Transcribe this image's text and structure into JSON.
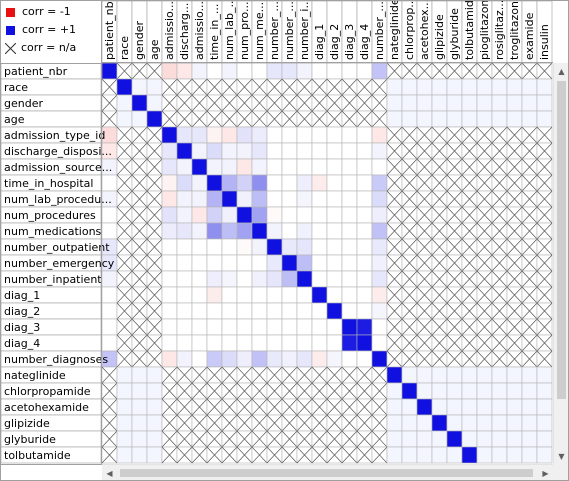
{
  "legend": {
    "neg": {
      "label": "corr = -1",
      "color": "#e81010"
    },
    "pos": {
      "label": "corr = +1",
      "color": "#1010e0"
    },
    "na": {
      "label": "corr = n/a",
      "icon": "cross-icon"
    }
  },
  "columns": [
    "patient_nbr",
    "race",
    "gender",
    "age",
    "admission_type_id",
    "discharge_disposition_id",
    "admission_source_id",
    "time_in_hospital",
    "num_lab_procedures",
    "num_procedures",
    "num_medications",
    "number_outpatient",
    "number_emergency",
    "number_inpatient",
    "diag_1",
    "diag_2",
    "diag_3",
    "diag_4",
    "number_diagnoses",
    "nateglinide",
    "chlorpropamide",
    "acetohexamide",
    "glipizide",
    "glyburide",
    "tolbutamide",
    "pioglitazone",
    "rosiglitazone",
    "troglitazone",
    "examide",
    "insulin"
  ],
  "column_labels": [
    "patient_nbr",
    "race",
    "gender",
    "age",
    "admissio...",
    "discharg...",
    "admissio...",
    "time_in_...",
    "num_lab_...",
    "num_pro...",
    "num_me...",
    "number_...",
    "number_...",
    "number_i...",
    "diag_1",
    "diag_2",
    "diag_3",
    "diag_4",
    "number_...",
    "nateglinide",
    "chlorprop...",
    "acetohex...",
    "glipizide",
    "glyburide",
    "tolbutamide",
    "pioglitazone",
    "rosiglitaz...",
    "troglitazone",
    "examide",
    "insulin"
  ],
  "row_labels": [
    "patient_nbr",
    "race",
    "gender",
    "age",
    "admission_type_id",
    "discharge_disposi...",
    "admission_source...",
    "time_in_hospital",
    "num_lab_procedu...",
    "num_procedures",
    "num_medications",
    "number_outpatient",
    "number_emergency",
    "number_inpatient",
    "diag_1",
    "diag_2",
    "diag_3",
    "diag_4",
    "number_diagnoses",
    "nateglinide",
    "chlorpropamide",
    "acetohexamide",
    "glipizide",
    "glyburide",
    "tolbutamide"
  ],
  "chart_data": {
    "type": "heatmap",
    "title": "",
    "color_scale": {
      "min": -1,
      "max": 1,
      "min_color": "#e81010",
      "max_color": "#1010e0",
      "na": "cross"
    },
    "numeric_features": [
      "patient_nbr",
      "admission_type_id",
      "discharge_disposition_id",
      "admission_source_id",
      "time_in_hospital",
      "num_lab_procedures",
      "num_procedures",
      "num_medications",
      "number_outpatient",
      "number_emergency",
      "number_inpatient",
      "diag_1",
      "diag_2",
      "diag_3",
      "diag_4",
      "number_diagnoses"
    ],
    "categorical_features": [
      "race",
      "gender",
      "age",
      "nateglinide",
      "chlorpropamide",
      "acetohexamide",
      "glipizide",
      "glyburide",
      "tolbutamide",
      "pioglitazone",
      "rosiglitazone",
      "troglitazone",
      "examide",
      "insulin"
    ],
    "diagonal_value": 1,
    "correlations": [
      {
        "a": "patient_nbr",
        "b": "admission_type_id",
        "value": -0.15
      },
      {
        "a": "patient_nbr",
        "b": "discharge_disposition_id",
        "value": -0.1
      },
      {
        "a": "patient_nbr",
        "b": "admission_source_id",
        "value": 0.05
      },
      {
        "a": "patient_nbr",
        "b": "num_lab_procedures",
        "value": 0.05
      },
      {
        "a": "patient_nbr",
        "b": "number_outpatient",
        "value": 0.1
      },
      {
        "a": "patient_nbr",
        "b": "number_emergency",
        "value": 0.1
      },
      {
        "a": "patient_nbr",
        "b": "number_inpatient",
        "value": 0.05
      },
      {
        "a": "patient_nbr",
        "b": "number_diagnoses",
        "value": 0.25
      },
      {
        "a": "admission_type_id",
        "b": "discharge_disposition_id",
        "value": 0.1
      },
      {
        "a": "admission_type_id",
        "b": "admission_source_id",
        "value": 0.1
      },
      {
        "a": "admission_type_id",
        "b": "time_in_hospital",
        "value": -0.05
      },
      {
        "a": "admission_type_id",
        "b": "num_lab_procedures",
        "value": -0.1
      },
      {
        "a": "admission_type_id",
        "b": "num_procedures",
        "value": 0.12
      },
      {
        "a": "admission_type_id",
        "b": "num_medications",
        "value": 0.08
      },
      {
        "a": "admission_type_id",
        "b": "number_diagnoses",
        "value": -0.1
      },
      {
        "a": "discharge_disposition_id",
        "b": "admission_source_id",
        "value": 0.05
      },
      {
        "a": "discharge_disposition_id",
        "b": "time_in_hospital",
        "value": 0.15
      },
      {
        "a": "discharge_disposition_id",
        "b": "num_lab_procedures",
        "value": 0.05
      },
      {
        "a": "discharge_disposition_id",
        "b": "num_procedures",
        "value": 0.05
      },
      {
        "a": "discharge_disposition_id",
        "b": "num_medications",
        "value": 0.1
      },
      {
        "a": "discharge_disposition_id",
        "b": "number_diagnoses",
        "value": 0.05
      },
      {
        "a": "admission_source_id",
        "b": "time_in_hospital",
        "value": 0.05
      },
      {
        "a": "admission_source_id",
        "b": "num_lab_procedures",
        "value": 0.05
      },
      {
        "a": "admission_source_id",
        "b": "num_procedures",
        "value": -0.1
      },
      {
        "a": "admission_source_id",
        "b": "num_medications",
        "value": 0.05
      },
      {
        "a": "time_in_hospital",
        "b": "num_lab_procedures",
        "value": 0.32
      },
      {
        "a": "time_in_hospital",
        "b": "num_procedures",
        "value": 0.19
      },
      {
        "a": "time_in_hospital",
        "b": "num_medications",
        "value": 0.47
      },
      {
        "a": "time_in_hospital",
        "b": "number_inpatient",
        "value": 0.07
      },
      {
        "a": "time_in_hospital",
        "b": "diag_1",
        "value": -0.08
      },
      {
        "a": "time_in_hospital",
        "b": "number_diagnoses",
        "value": 0.22
      },
      {
        "a": "num_lab_procedures",
        "b": "num_procedures",
        "value": 0.06
      },
      {
        "a": "num_lab_procedures",
        "b": "num_medications",
        "value": 0.27
      },
      {
        "a": "num_lab_procedures",
        "b": "number_inpatient",
        "value": 0.04
      },
      {
        "a": "num_lab_procedures",
        "b": "number_diagnoses",
        "value": 0.15
      },
      {
        "a": "num_procedures",
        "b": "num_medications",
        "value": 0.39
      },
      {
        "a": "num_procedures",
        "b": "number_outpatient",
        "value": -0.02
      },
      {
        "a": "num_procedures",
        "b": "number_diagnoses",
        "value": 0.07
      },
      {
        "a": "num_medications",
        "b": "number_outpatient",
        "value": 0.05
      },
      {
        "a": "num_medications",
        "b": "number_inpatient",
        "value": 0.06
      },
      {
        "a": "num_medications",
        "b": "number_diagnoses",
        "value": 0.26
      },
      {
        "a": "number_outpatient",
        "b": "number_emergency",
        "value": 0.09
      },
      {
        "a": "number_outpatient",
        "b": "number_inpatient",
        "value": 0.11
      },
      {
        "a": "number_outpatient",
        "b": "number_diagnoses",
        "value": 0.09
      },
      {
        "a": "number_emergency",
        "b": "number_inpatient",
        "value": 0.27
      },
      {
        "a": "number_emergency",
        "b": "number_diagnoses",
        "value": 0.06
      },
      {
        "a": "number_inpatient",
        "b": "number_diagnoses",
        "value": 0.1
      },
      {
        "a": "diag_1",
        "b": "number_diagnoses",
        "value": -0.08
      },
      {
        "a": "diag_3",
        "b": "diag_4",
        "value": 0.95
      },
      {
        "a": "diag_2",
        "b": "number_diagnoses",
        "value": 0.04
      }
    ]
  }
}
